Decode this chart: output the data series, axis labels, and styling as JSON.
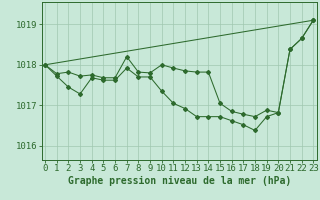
{
  "title": "Graphe pression niveau de la mer (hPa)",
  "x_ticks": [
    0,
    1,
    2,
    3,
    4,
    5,
    6,
    7,
    8,
    9,
    10,
    11,
    12,
    13,
    14,
    15,
    16,
    17,
    18,
    19,
    20,
    21,
    22,
    23
  ],
  "y_ticks": [
    1016,
    1017,
    1018,
    1019
  ],
  "ylim": [
    1015.65,
    1019.55
  ],
  "xlim": [
    -0.3,
    23.3
  ],
  "bg_color": "#c8e8d8",
  "grid_color": "#a0c8b0",
  "line_color": "#2d6a2d",
  "upper_line": [
    [
      0,
      23
    ],
    [
      1018.0,
      1019.1
    ]
  ],
  "series1": [
    1018.0,
    1017.78,
    1017.82,
    1017.72,
    1017.75,
    1017.68,
    1017.68,
    1018.2,
    1017.82,
    1017.8,
    1018.0,
    1017.92,
    1017.85,
    1017.82,
    1017.82,
    1017.05,
    1016.85,
    1016.78,
    1016.72,
    1016.88,
    1016.82,
    1018.38,
    1018.65,
    1019.1
  ],
  "series2": [
    1018.0,
    1017.72,
    1017.45,
    1017.28,
    1017.68,
    1017.62,
    1017.62,
    1017.92,
    1017.7,
    1017.7,
    1017.35,
    1017.05,
    1016.92,
    1016.72,
    1016.72,
    1016.72,
    1016.62,
    1016.52,
    1016.38,
    1016.72,
    1016.82,
    1018.38,
    1018.65,
    1019.1
  ],
  "font_size_label": 7.0,
  "font_size_tick": 6.5
}
